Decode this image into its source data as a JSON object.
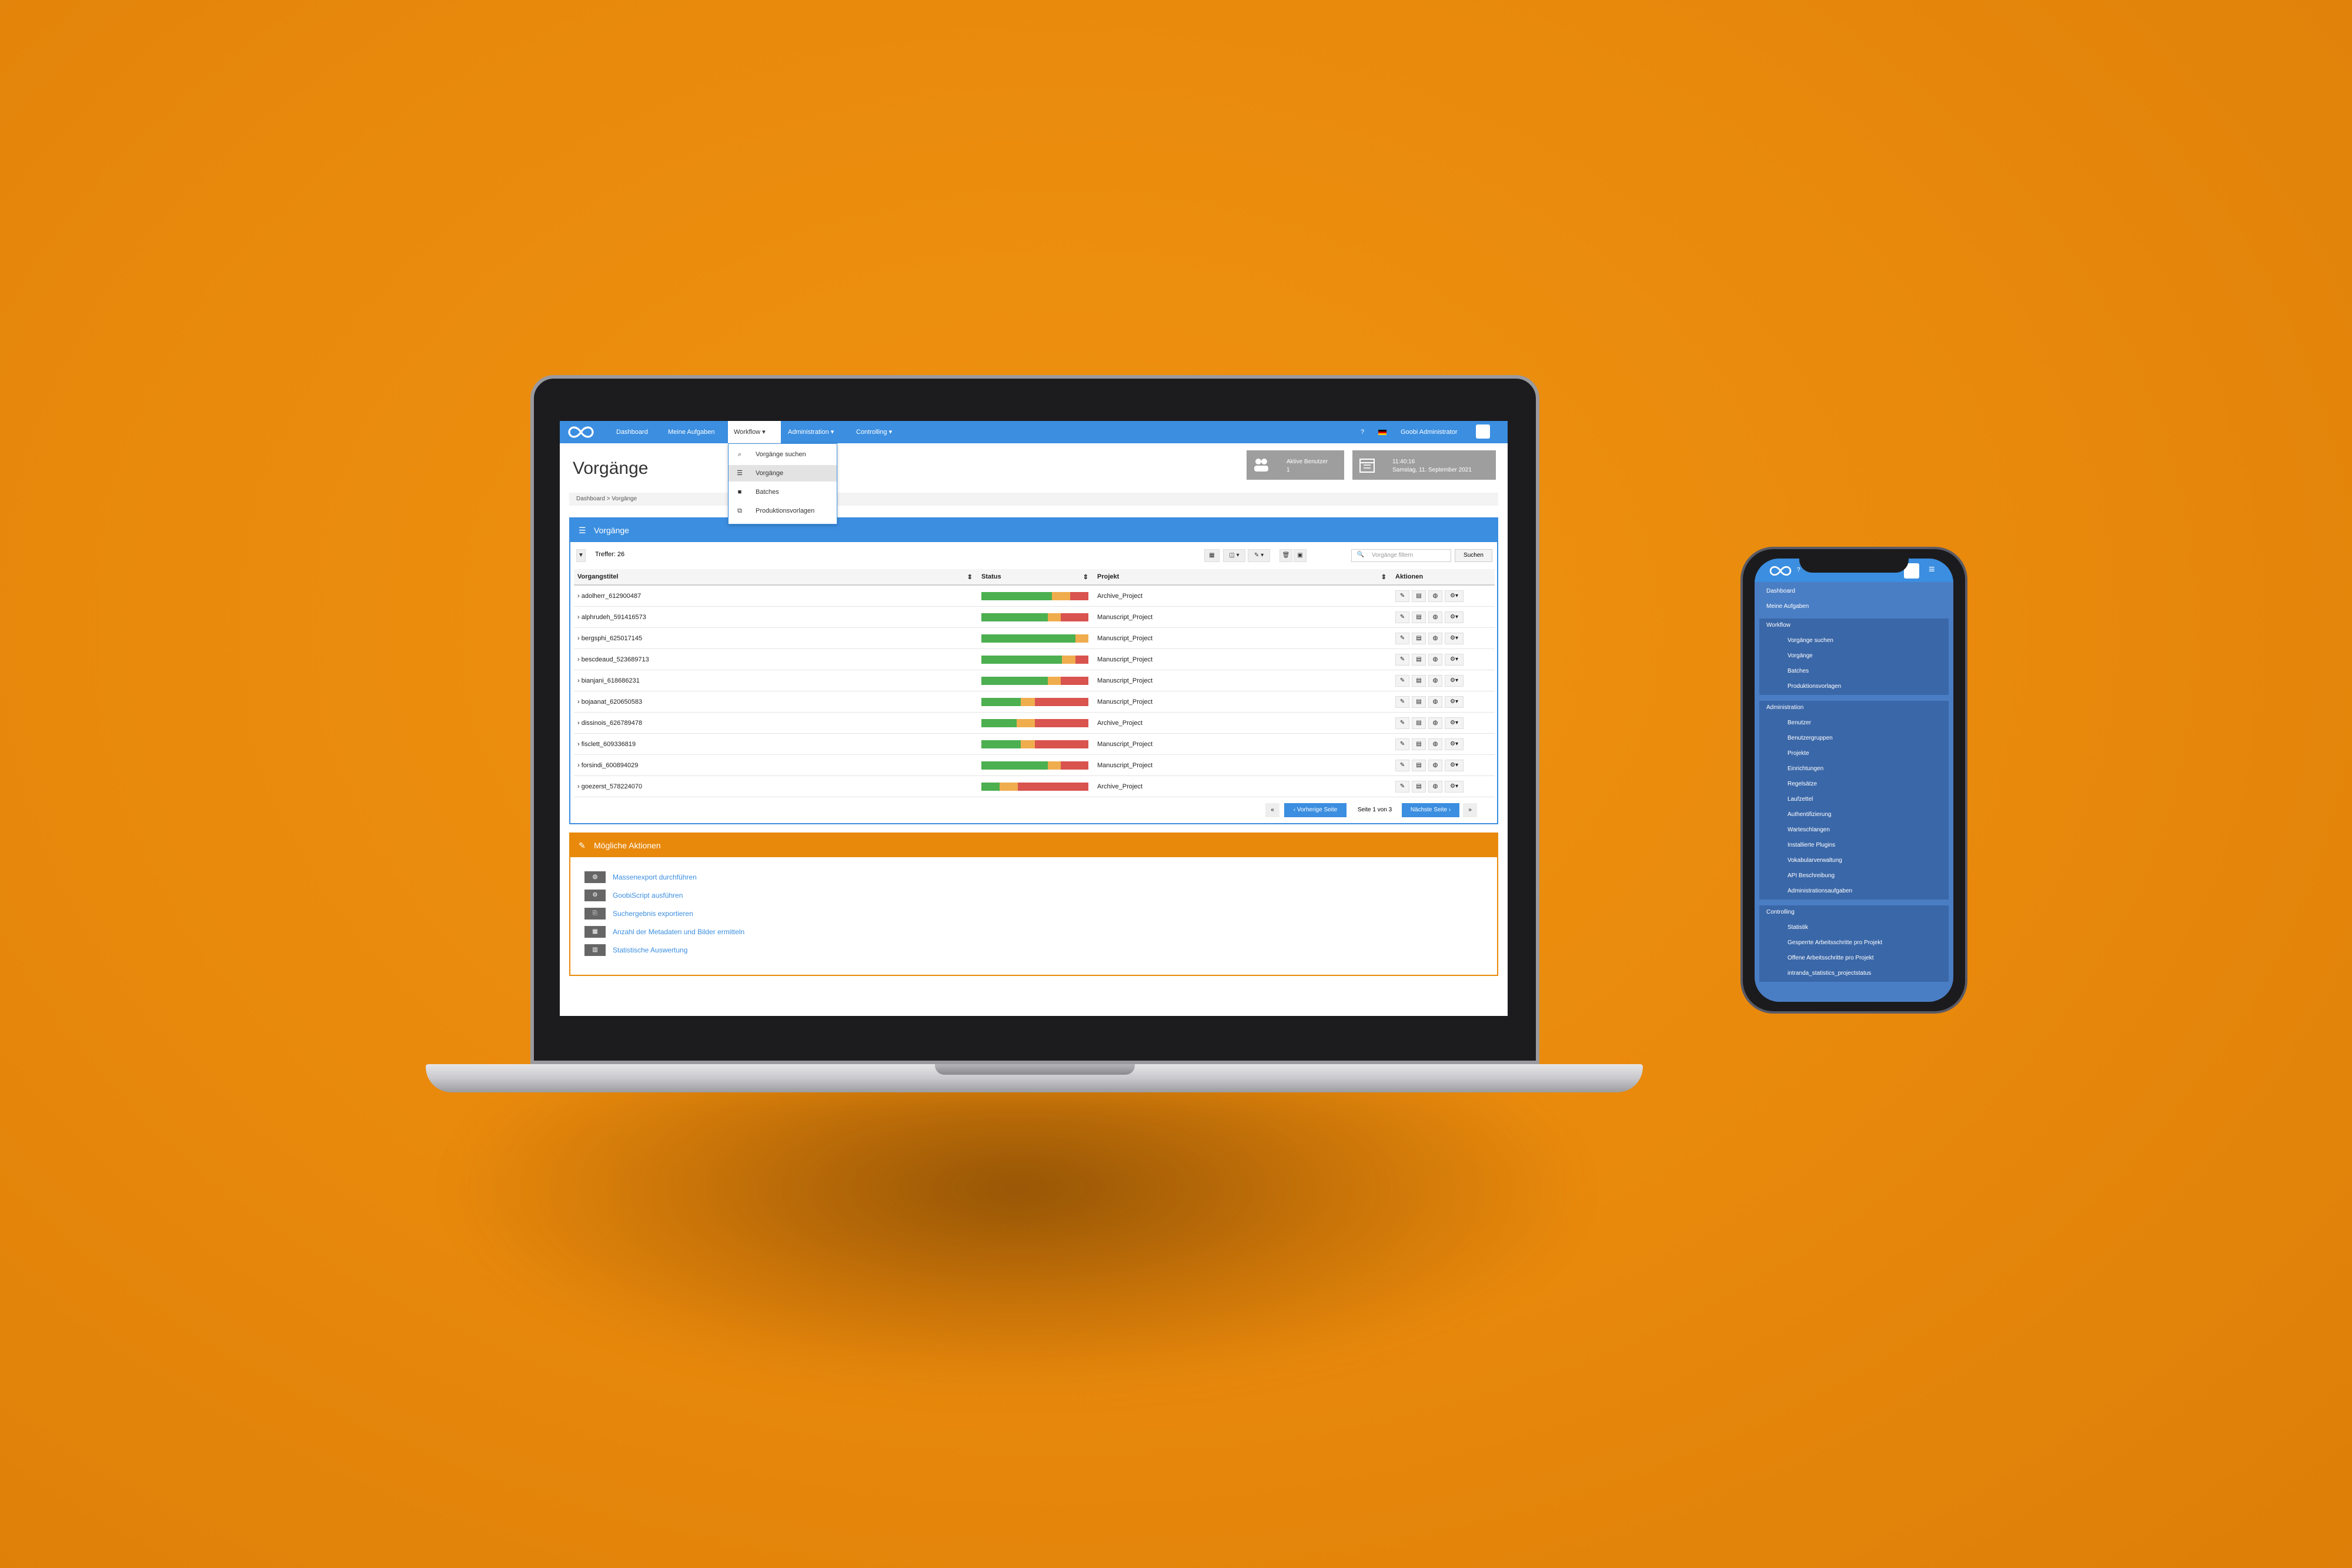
{
  "nav": {
    "items": [
      "Dashboard",
      "Meine Aufgaben",
      "Workflow",
      "Administration",
      "Controlling"
    ],
    "help": "?",
    "user": "Goobi Administrator"
  },
  "page_title": "Vorgänge",
  "widgets": {
    "users_label": "Aktive Benutzer",
    "users_count": "1",
    "time": "11:40:16",
    "date": "Samstag, 11. September 2021"
  },
  "breadcrumb": "Dashboard > Vorgänge",
  "workflow_menu": [
    {
      "icon": "search-icon",
      "label": "Vorgänge suchen"
    },
    {
      "icon": "list-icon",
      "label": "Vorgänge"
    },
    {
      "icon": "batch-icon",
      "label": "Batches"
    },
    {
      "icon": "copy-icon",
      "label": "Produktionsvorlagen"
    }
  ],
  "processes_box": {
    "title": "Vorgänge",
    "hits": "Treffer: 26",
    "filter_placeholder": "Vorgänge filtern",
    "search_label": "Suchen",
    "columns": [
      "Vorgangstitel",
      "Status",
      "Projekt",
      "Aktionen"
    ],
    "rows": [
      {
        "title": "adolherr_612900487",
        "project": "Archive_Project",
        "status": [
          0.66,
          0.17,
          0.17
        ]
      },
      {
        "title": "alphrudeh_591416573",
        "project": "Manuscript_Project",
        "status": [
          0.62,
          0.12,
          0.26
        ]
      },
      {
        "title": "bergsphi_625017145",
        "project": "Manuscript_Project",
        "status": [
          0.88,
          0.12,
          0.0
        ]
      },
      {
        "title": "bescdeaud_523689713",
        "project": "Manuscript_Project",
        "status": [
          0.75,
          0.13,
          0.12
        ]
      },
      {
        "title": "bianjani_618686231",
        "project": "Manuscript_Project",
        "status": [
          0.62,
          0.12,
          0.26
        ]
      },
      {
        "title": "bojaanat_620650583",
        "project": "Manuscript_Project",
        "status": [
          0.37,
          0.13,
          0.5
        ]
      },
      {
        "title": "dissinois_626789478",
        "project": "Archive_Project",
        "status": [
          0.33,
          0.17,
          0.5
        ]
      },
      {
        "title": "fisclett_609336819",
        "project": "Manuscript_Project",
        "status": [
          0.37,
          0.13,
          0.5
        ]
      },
      {
        "title": "forsindi_600894029",
        "project": "Manuscript_Project",
        "status": [
          0.62,
          0.12,
          0.26
        ]
      },
      {
        "title": "goezerst_578224070",
        "project": "Archive_Project",
        "status": [
          0.17,
          0.17,
          0.66
        ]
      }
    ],
    "pager": {
      "prev": "‹ Vorherige Seite",
      "page": "Seite 1 von 3",
      "next": "Nächste Seite ›"
    }
  },
  "actions_box": {
    "title": "Mögliche Aktionen",
    "items": [
      "Massenexport durchführen",
      "GoobiScript ausführen",
      "Suchergebnis exportieren",
      "Anzahl der Metadaten und Bilder ermitteln",
      "Statistische Auswertung"
    ]
  },
  "mobile_menu": {
    "top": [
      "Dashboard",
      "Meine Aufgaben"
    ],
    "workflow": {
      "title": "Workflow",
      "items": [
        "Vorgänge suchen",
        "Vorgänge",
        "Batches",
        "Produktionsvorlagen"
      ]
    },
    "administration": {
      "title": "Administration",
      "items": [
        "Benutzer",
        "Benutzergruppen",
        "Projekte",
        "Einrichtungen",
        "Regelsätze",
        "Laufzettel",
        "Authentifizierung",
        "Warteschlangen",
        "Installierte Plugins",
        "Vokabularverwaltung",
        "API Beschreibung",
        "Administrationsaufgaben"
      ]
    },
    "controlling": {
      "title": "Controlling",
      "items": [
        "Statistik",
        "Gesperrte Arbeitsschritte pro Projekt",
        "Offene Arbeitsschritte pro Projekt",
        "intranda_statistics_projectstatus"
      ]
    }
  },
  "colors": {
    "primary": "#3b8ee0",
    "accent": "#e8890c",
    "ok": "#4caf50",
    "warn": "#f0ad4e",
    "err": "#d9534f"
  }
}
